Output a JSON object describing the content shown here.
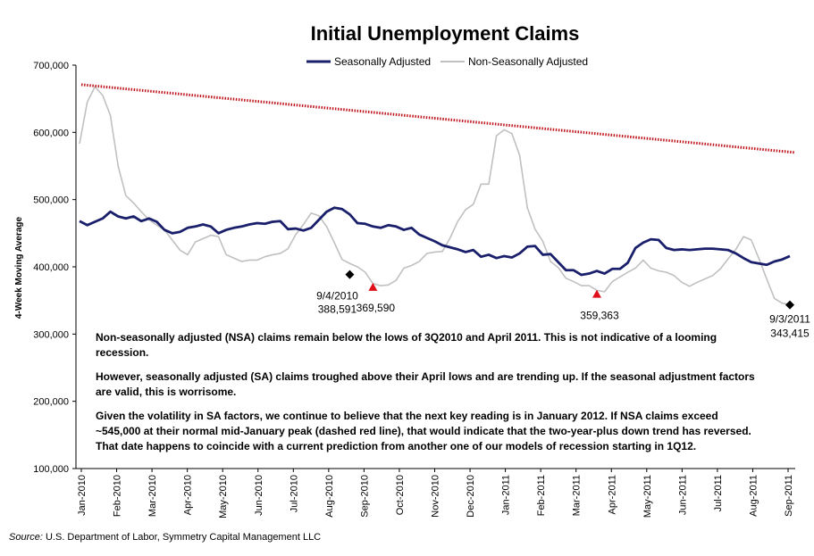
{
  "chart_data": {
    "type": "line",
    "title": "Initial Unemployment Claims",
    "ylabel": "4-Week Moving Average",
    "xlabel": "",
    "ylim": [
      100000,
      700000
    ],
    "y_ticks": [
      "100,000",
      "200,000",
      "300,000",
      "400,000",
      "500,000",
      "600,000",
      "700,000"
    ],
    "y_tick_values": [
      100000,
      200000,
      300000,
      400000,
      500000,
      600000,
      700000
    ],
    "x_ticks": [
      "Jan-2010",
      "Feb-2010",
      "Mar-2010",
      "Apr-2010",
      "May-2010",
      "Jun-2010",
      "Jul-2010",
      "Aug-2010",
      "Sep-2010",
      "Oct-2010",
      "Nov-2010",
      "Dec-2010",
      "Jan-2011",
      "Feb-2011",
      "Mar-2011",
      "Apr-2011",
      "May-2011",
      "Jun-2011",
      "Jul-2011",
      "Aug-2011",
      "Sep-2011"
    ],
    "grid": false,
    "legend_position": "top-center",
    "series": [
      {
        "name": "Seasonally Adjusted",
        "color": "#1a1f6b",
        "values": [
          468000,
          462000,
          467000,
          472000,
          482000,
          475000,
          472000,
          475000,
          468000,
          472000,
          467000,
          455000,
          450000,
          452000,
          458000,
          460000,
          463000,
          460000,
          450000,
          455000,
          458000,
          460000,
          463000,
          465000,
          464000,
          467000,
          468000,
          456000,
          457000,
          454000,
          458000,
          470000,
          482000,
          488000,
          486000,
          478000,
          465000,
          464000,
          460000,
          458000,
          462000,
          460000,
          455000,
          458000,
          448000,
          443000,
          438000,
          432000,
          429000,
          426000,
          422000,
          425000,
          415000,
          418000,
          413000,
          416000,
          414000,
          420000,
          430000,
          431000,
          418000,
          419000,
          407000,
          395000,
          395000,
          388000,
          390000,
          394000,
          390000,
          397000,
          397000,
          406000,
          428000,
          436000,
          441000,
          440000,
          428000,
          425000,
          426000,
          425000,
          426000,
          427000,
          427000,
          426000,
          425000,
          420000,
          413000,
          407000,
          405000,
          403000,
          408000,
          411000,
          416000
        ]
      },
      {
        "name": "Non-Seasonally Adjusted",
        "color": "#c0c0c0",
        "values": [
          583000,
          645000,
          668000,
          655000,
          625000,
          550000,
          506000,
          495000,
          482000,
          470000,
          462000,
          455000,
          440000,
          425000,
          418000,
          437000,
          442000,
          447000,
          445000,
          418000,
          413000,
          408000,
          410000,
          410000,
          415000,
          418000,
          420000,
          427000,
          448000,
          463000,
          480000,
          476000,
          460000,
          436000,
          411000,
          405000,
          400000,
          392000,
          375000,
          372000,
          373000,
          380000,
          398000,
          402000,
          408000,
          420000,
          422000,
          423000,
          443000,
          468000,
          485000,
          493000,
          523000,
          523000,
          595000,
          604000,
          598000,
          566000,
          488000,
          456000,
          438000,
          408000,
          399000,
          383000,
          378000,
          372000,
          372000,
          365000,
          363000,
          378000,
          385000,
          392000,
          398000,
          410000,
          398000,
          394000,
          392000,
          387000,
          377000,
          371000,
          377000,
          382000,
          387000,
          397000,
          412000,
          426000,
          445000,
          440000,
          412000,
          382000,
          353000,
          346000,
          344000
        ]
      },
      {
        "name": "",
        "color": "#c0141c",
        "style": "dotted",
        "values": [
          671000,
          570000
        ]
      }
    ],
    "annotations": [
      {
        "date": "9/4/2010",
        "value": "388,591",
        "marker": "diamond",
        "color": "#000000",
        "y": 388591,
        "index": 35
      },
      {
        "date": "",
        "value": "369,590",
        "marker": "triangle",
        "color": "#e0101a",
        "y": 369590,
        "index": 38
      },
      {
        "date": "",
        "value": "359,363",
        "marker": "triangle",
        "color": "#e0101a",
        "y": 359363,
        "index": 67
      },
      {
        "date": "9/3/2011",
        "value": "343,415",
        "marker": "diamond",
        "color": "#000000",
        "y": 343415,
        "index": 92
      }
    ]
  },
  "commentary": {
    "p1": "Non-seasonally adjusted (NSA) claims remain below the lows of 3Q2010 and April 2011. This is not indicative of a looming recession.",
    "p2": "However, seasonally adjusted (SA) claims troughed above their April lows and are trending up. If the seasonal adjustment factors are valid, this is worrisome.",
    "p3": "Given the volatility in SA factors, we continue to believe that the next key reading is in January 2012. If NSA claims exceed ~545,000 at their normal mid-January peak (dashed red line), that would indicate that the two-year-plus down trend has reversed. That date happens to coincide with a current prediction from another one of our models of recession starting in 1Q12."
  },
  "source": {
    "label": "Source:",
    "text": "U.S. Department of Labor, Symmetry Capital Management LLC"
  }
}
